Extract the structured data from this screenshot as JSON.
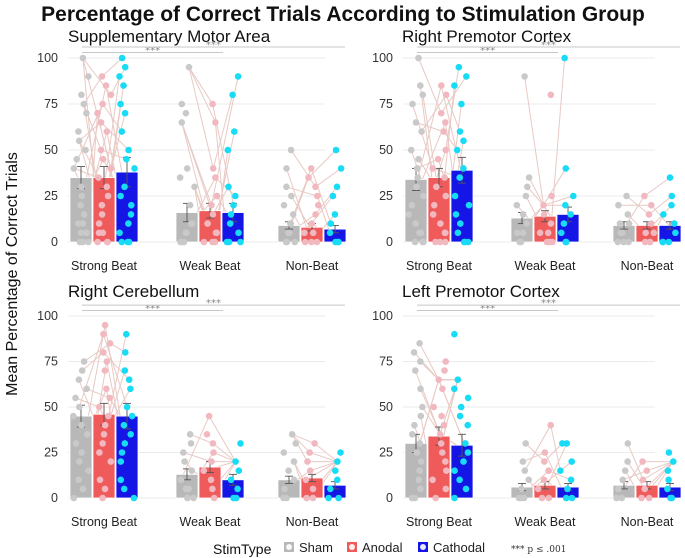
{
  "chart_data": {
    "type": "bar",
    "title": "Percentage of Correct Trials According to Stimulation Group",
    "ylabel": "Mean Percentage of Correct Trials",
    "xlabel": "",
    "ylim": [
      0,
      100
    ],
    "yticks": [
      "0",
      "25",
      "50",
      "75",
      "100"
    ],
    "categories": [
      "Strong Beat",
      "Weak Beat",
      "Non-Beat"
    ],
    "legend": {
      "title": "StimType",
      "entries": [
        {
          "name": "Sham",
          "color": "#b8b8b8",
          "point_color": "#c9c9c9"
        },
        {
          "name": "Anodal",
          "color": "#ef5b5b",
          "point_color": "#f2b8bf"
        },
        {
          "name": "Cathodal",
          "color": "#1515e6",
          "point_color": "#18dcf5"
        }
      ],
      "note": "*** p ≤ .001"
    },
    "significance_label": "***",
    "panels": [
      {
        "title": "Supplementary Motor Area",
        "series": [
          {
            "name": "Sham",
            "values": [
              35,
              16,
              9
            ],
            "errors": [
              6,
              5,
              2
            ]
          },
          {
            "name": "Anodal",
            "values": [
              35,
              17,
              8
            ],
            "errors": [
              6,
              4,
              2
            ]
          },
          {
            "name": "Cathodal",
            "values": [
              38,
              16,
              7
            ],
            "errors": [
              8,
              5,
              2
            ]
          }
        ],
        "points": [
          [
            [
              100,
              90,
              80,
              75,
              70,
              60,
              55,
              50,
              45,
              40,
              30,
              25,
              20,
              15,
              10,
              10,
              5,
              5,
              0,
              0,
              0
            ],
            [
              95,
              75,
              70,
              65,
              40,
              35,
              30,
              20,
              10,
              10,
              5,
              5,
              0,
              0,
              0
            ],
            [
              50,
              40,
              30,
              25,
              20,
              15,
              10,
              10,
              5,
              5,
              0,
              0,
              0
            ]
          ],
          [
            [
              90,
              85,
              80,
              75,
              70,
              65,
              60,
              50,
              45,
              40,
              35,
              30,
              25,
              20,
              15,
              10,
              5,
              5,
              0,
              0,
              0
            ],
            [
              75,
              65,
              40,
              35,
              25,
              20,
              15,
              10,
              5,
              5,
              0,
              0,
              0
            ],
            [
              40,
              35,
              30,
              25,
              20,
              15,
              10,
              5,
              5,
              0,
              0,
              0
            ]
          ],
          [
            [
              100,
              95,
              90,
              85,
              75,
              70,
              60,
              50,
              45,
              40,
              30,
              25,
              20,
              15,
              10,
              5,
              0,
              0,
              0
            ],
            [
              90,
              80,
              60,
              50,
              30,
              25,
              20,
              15,
              10,
              5,
              0,
              0,
              0
            ],
            [
              50,
              40,
              30,
              25,
              15,
              10,
              5,
              0,
              0,
              0
            ]
          ]
        ]
      },
      {
        "title": "Right Premotor Cortex",
        "series": [
          {
            "name": "Sham",
            "values": [
              34,
              13,
              9
            ],
            "errors": [
              6,
              3,
              2
            ]
          },
          {
            "name": "Anodal",
            "values": [
              35,
              14,
              9
            ],
            "errors": [
              5,
              3,
              2
            ]
          },
          {
            "name": "Cathodal",
            "values": [
              39,
              15,
              9
            ],
            "errors": [
              7,
              4,
              2
            ]
          }
        ],
        "points": [
          [
            [
              100,
              85,
              80,
              75,
              65,
              60,
              50,
              45,
              40,
              35,
              30,
              25,
              20,
              15,
              10,
              5,
              5,
              0,
              0,
              0
            ],
            [
              90,
              35,
              30,
              25,
              20,
              15,
              10,
              5,
              5,
              0,
              0
            ],
            [
              25,
              20,
              15,
              10,
              10,
              5,
              5,
              0,
              0,
              0
            ]
          ],
          [
            [
              85,
              80,
              70,
              65,
              60,
              50,
              45,
              40,
              35,
              30,
              25,
              20,
              15,
              10,
              5,
              5,
              0,
              0,
              0
            ],
            [
              80,
              25,
              20,
              15,
              10,
              5,
              5,
              0,
              0,
              0
            ],
            [
              25,
              20,
              15,
              10,
              5,
              5,
              0,
              0,
              0
            ]
          ],
          [
            [
              95,
              90,
              85,
              75,
              60,
              55,
              50,
              40,
              35,
              25,
              20,
              15,
              10,
              5,
              0,
              0,
              0
            ],
            [
              100,
              40,
              25,
              20,
              15,
              10,
              5,
              0,
              0
            ],
            [
              35,
              25,
              20,
              15,
              10,
              5,
              0,
              0,
              0
            ]
          ]
        ]
      },
      {
        "title": "Right Cerebellum",
        "series": [
          {
            "name": "Sham",
            "values": [
              45,
              13,
              10
            ],
            "errors": [
              6,
              3,
              2
            ]
          },
          {
            "name": "Anodal",
            "values": [
              46,
              17,
              11
            ],
            "errors": [
              6,
              3,
              2
            ]
          },
          {
            "name": "Cathodal",
            "values": [
              45,
              10,
              7
            ],
            "errors": [
              7,
              3,
              2
            ]
          }
        ],
        "points": [
          [
            [
              75,
              70,
              65,
              60,
              55,
              50,
              45,
              40,
              35,
              30,
              25,
              20,
              15,
              10,
              5,
              0
            ],
            [
              35,
              30,
              25,
              20,
              15,
              10,
              5,
              5,
              0,
              0
            ],
            [
              35,
              30,
              25,
              20,
              15,
              10,
              5,
              0,
              0
            ]
          ],
          [
            [
              95,
              90,
              85,
              80,
              75,
              70,
              60,
              55,
              50,
              45,
              40,
              35,
              30,
              25,
              20,
              10,
              5,
              0
            ],
            [
              45,
              35,
              30,
              25,
              20,
              15,
              10,
              5,
              0
            ],
            [
              30,
              25,
              20,
              15,
              10,
              5,
              0,
              0
            ]
          ],
          [
            [
              90,
              80,
              70,
              65,
              60,
              50,
              45,
              40,
              35,
              30,
              25,
              20,
              10,
              5,
              0
            ],
            [
              30,
              20,
              15,
              10,
              5,
              0,
              0
            ],
            [
              25,
              20,
              15,
              10,
              5,
              0,
              0
            ]
          ]
        ]
      },
      {
        "title": "Left Premotor Cortex",
        "series": [
          {
            "name": "Sham",
            "values": [
              30,
              6,
              7
            ],
            "errors": [
              5,
              2,
              2
            ]
          },
          {
            "name": "Anodal",
            "values": [
              34,
              7,
              7
            ],
            "errors": [
              5,
              2,
              2
            ]
          },
          {
            "name": "Cathodal",
            "values": [
              29,
              6,
              6
            ],
            "errors": [
              6,
              2,
              2
            ]
          }
        ],
        "points": [
          [
            [
              85,
              80,
              75,
              70,
              60,
              50,
              45,
              40,
              35,
              30,
              25,
              20,
              15,
              10,
              5,
              0,
              0
            ],
            [
              30,
              20,
              15,
              10,
              5,
              0,
              0,
              0
            ],
            [
              30,
              20,
              15,
              10,
              5,
              0,
              0
            ]
          ],
          [
            [
              75,
              70,
              65,
              60,
              50,
              45,
              40,
              35,
              30,
              25,
              20,
              15,
              10,
              5,
              0
            ],
            [
              40,
              25,
              20,
              15,
              10,
              5,
              0,
              0
            ],
            [
              20,
              15,
              10,
              5,
              0,
              0
            ]
          ],
          [
            [
              90,
              65,
              60,
              55,
              50,
              45,
              40,
              30,
              25,
              20,
              15,
              10,
              5,
              0
            ],
            [
              30,
              30,
              20,
              15,
              10,
              5,
              0,
              0
            ],
            [
              25,
              20,
              15,
              10,
              5,
              0,
              0
            ]
          ]
        ]
      }
    ]
  }
}
